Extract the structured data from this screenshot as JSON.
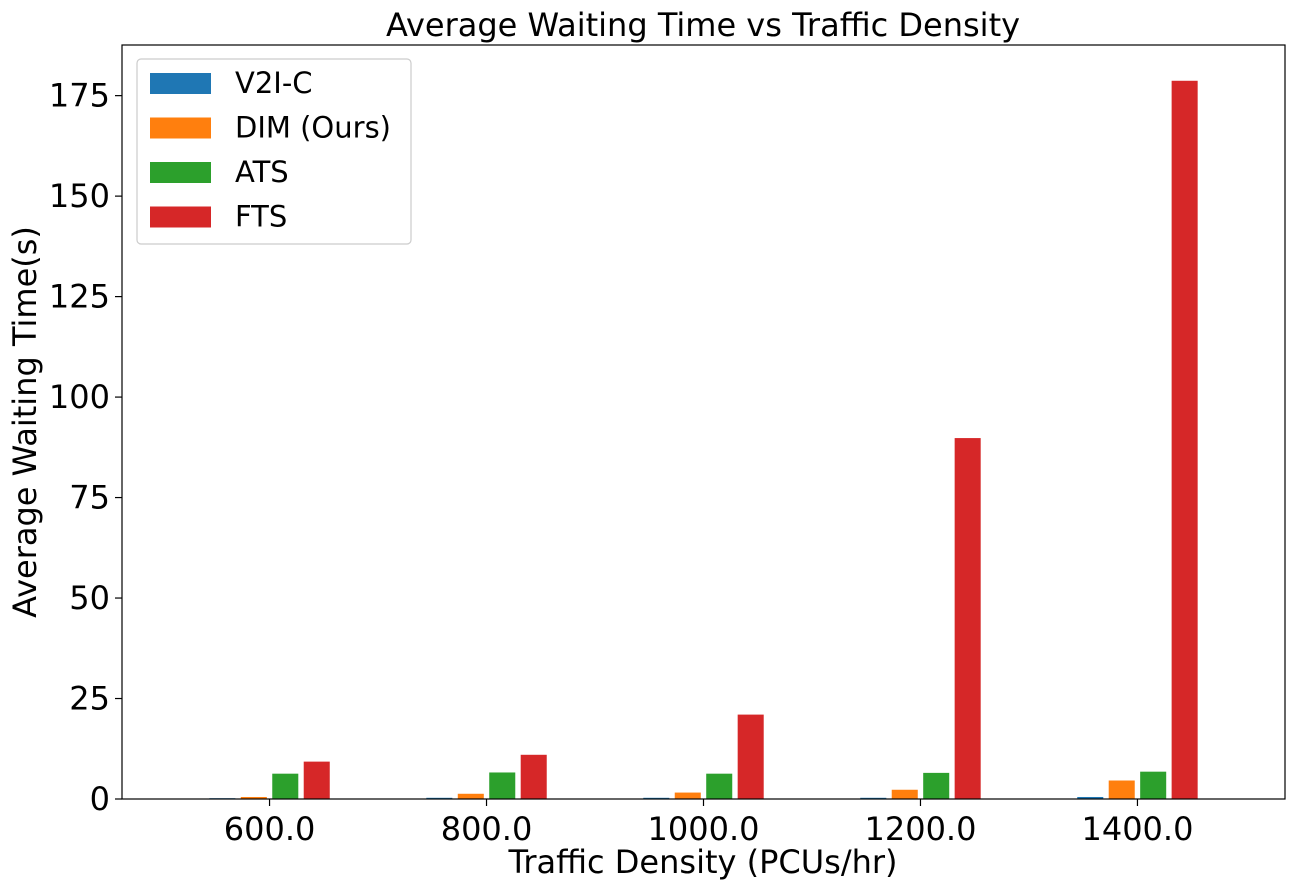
{
  "chart_data": {
    "type": "bar",
    "title": "Average Waiting Time  vs Traffic Density",
    "xlabel": "Traffic Density (PCUs/hr)",
    "ylabel": "Average Waiting Time(s)",
    "categories": [
      "600.0",
      "800.0",
      "1000.0",
      "1200.0",
      "1400.0"
    ],
    "series": [
      {
        "name": "V2I-C",
        "color": "#1f77b4",
        "values": [
          0.2,
          0.3,
          0.3,
          0.3,
          0.5
        ]
      },
      {
        "name": "DIM (Ours)",
        "color": "#ff7f0e",
        "values": [
          0.5,
          1.3,
          1.6,
          2.3,
          4.6
        ]
      },
      {
        "name": "ATS",
        "color": "#2ca02c",
        "values": [
          6.3,
          6.6,
          6.3,
          6.5,
          6.8
        ]
      },
      {
        "name": "FTS",
        "color": "#d62728",
        "values": [
          9.3,
          11.0,
          21.0,
          89.8,
          178.7
        ]
      }
    ],
    "ylim": [
      0,
      187.6
    ],
    "yticks": [
      0,
      25,
      50,
      75,
      100,
      125,
      150,
      175
    ],
    "grid": false,
    "legend_position": "top-left"
  }
}
